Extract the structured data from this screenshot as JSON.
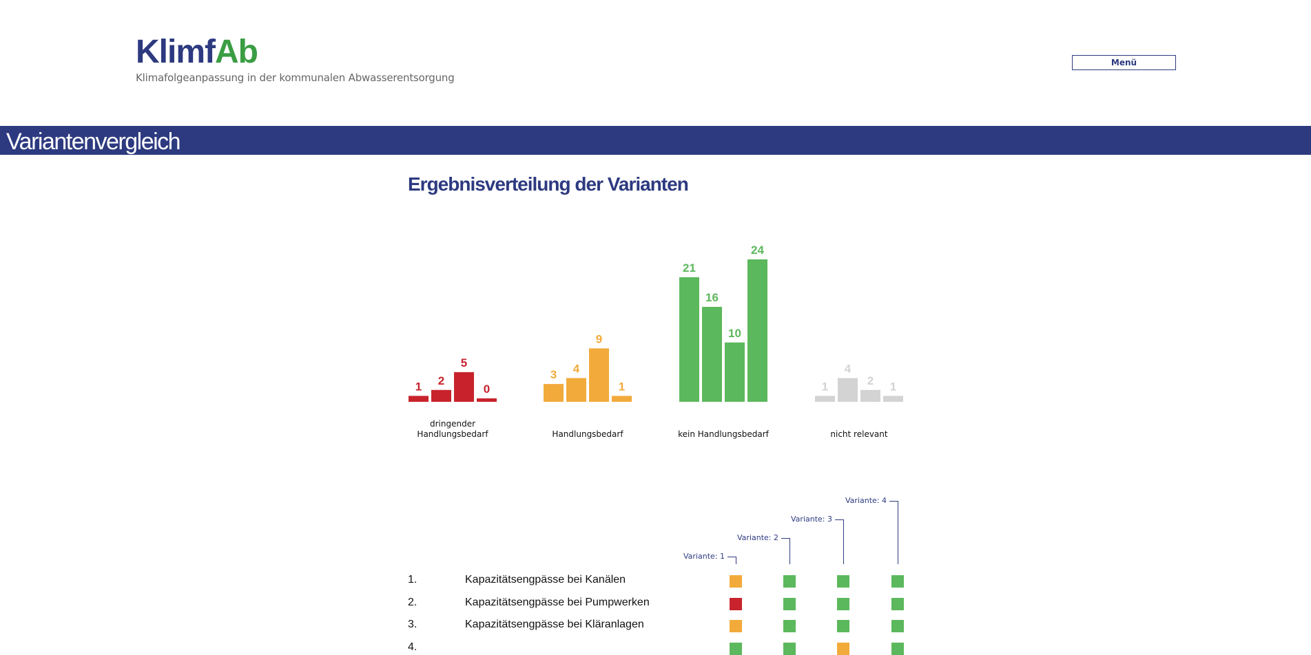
{
  "header": {
    "logo_part1": "Klimf",
    "logo_part2": "Ab",
    "tagline": "Klimafolgeanpassung in der kommunalen Abwasserentsorgung",
    "menu_label": "Menü"
  },
  "banner": {
    "title": "Variantenvergleich"
  },
  "section": {
    "title": "Ergebnisverteilung der Varianten"
  },
  "colors": {
    "brand_blue": "#2d3a80",
    "brand_green": "#3a9d43",
    "urgent": "#c8232c",
    "needed": "#f2aa3a",
    "none": "#5cb85c",
    "irrelevant": "#d3d3d3"
  },
  "chart_data": {
    "type": "bar",
    "categories": [
      "dringender Handlungsbedarf",
      "Handlungsbedarf",
      "kein Handlungsbedarf",
      "nicht relevant"
    ],
    "series": [
      {
        "values": [
          1,
          3,
          21,
          1
        ]
      },
      {
        "values": [
          2,
          4,
          16,
          4
        ]
      },
      {
        "values": [
          5,
          9,
          10,
          2
        ]
      },
      {
        "values": [
          0,
          1,
          24,
          1
        ]
      }
    ],
    "category_colors": [
      "#c8232c",
      "#f2aa3a",
      "#5cb85c",
      "#d3d3d3"
    ],
    "value_label_colors": [
      "#c8232c",
      "#f2aa3a",
      "#5cb85c",
      "#d3d3d3"
    ],
    "ylim": [
      0,
      24
    ],
    "grid": false,
    "legend": "none"
  },
  "variants": [
    "Variante: 1",
    "Variante: 2",
    "Variante: 3",
    "Variante: 4"
  ],
  "rows": [
    {
      "num": "1.",
      "text": "Kapazitätsengpässe bei Kanälen",
      "status": [
        "needed",
        "none",
        "none",
        "none"
      ]
    },
    {
      "num": "2.",
      "text": "Kapazitätsengpässe bei Pumpwerken",
      "status": [
        "urgent",
        "none",
        "none",
        "none"
      ]
    },
    {
      "num": "3.",
      "text": "Kapazitätsengpässe bei Kläranlagen",
      "status": [
        "needed",
        "none",
        "none",
        "none"
      ]
    },
    {
      "num": "4.",
      "text": "",
      "status": [
        "none",
        "none",
        "needed",
        "none"
      ]
    }
  ]
}
